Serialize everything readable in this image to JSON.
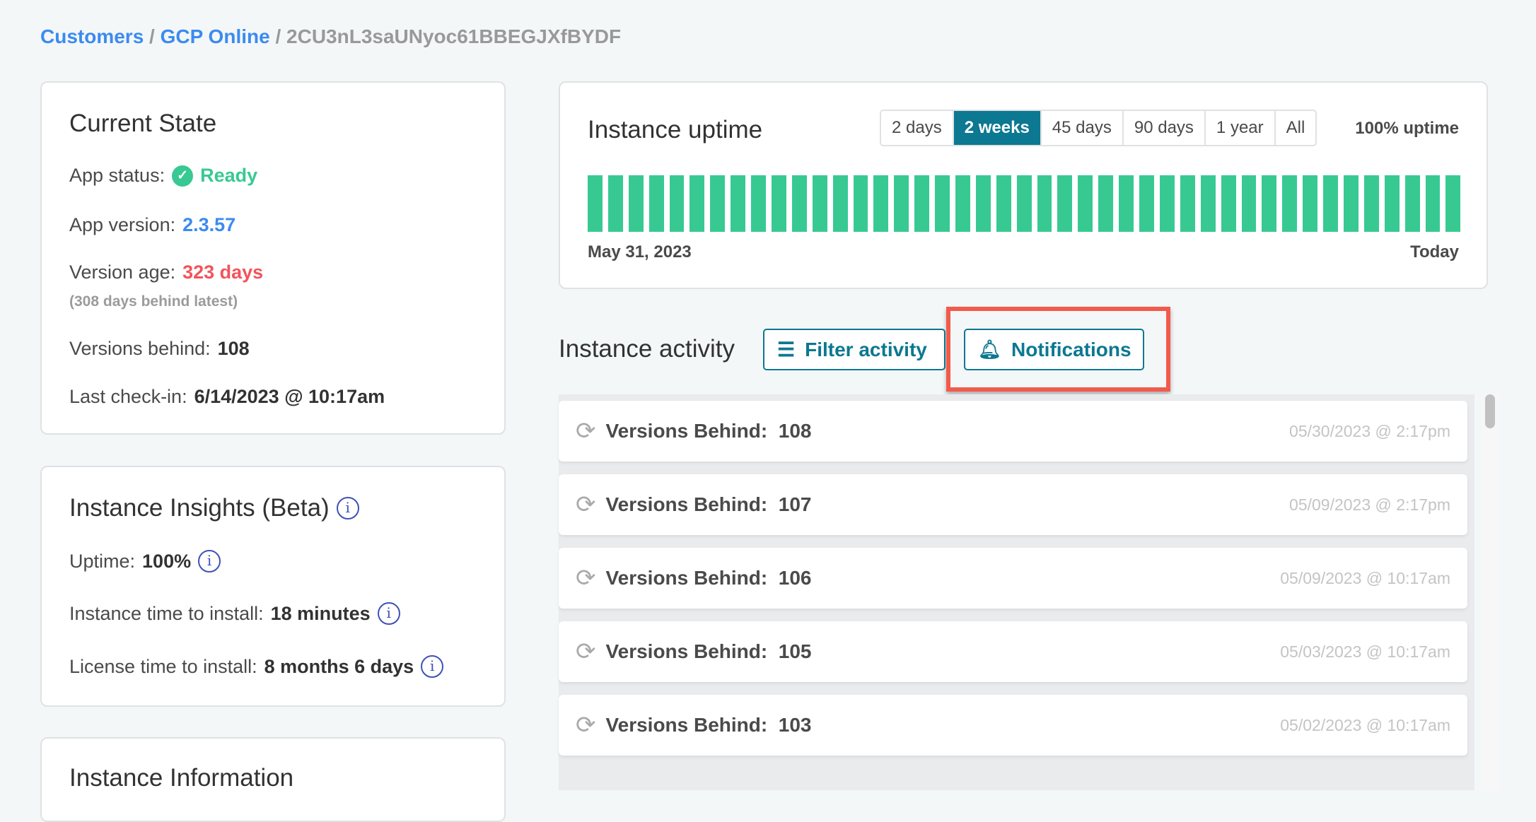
{
  "breadcrumb": {
    "customers": "Customers",
    "app": "GCP Online",
    "instance": "2CU3nL3saUNyoc61BBEGJXfBYDF",
    "sep": "/"
  },
  "current_state": {
    "title": "Current State",
    "app_status_label": "App status:",
    "app_status": "Ready",
    "app_version_label": "App version:",
    "app_version": "2.3.57",
    "version_age_label": "Version age:",
    "version_age": "323 days",
    "version_age_note": "(308 days behind latest)",
    "versions_behind_label": "Versions behind:",
    "versions_behind": "108",
    "last_checkin_label": "Last check-in:",
    "last_checkin": "6/14/2023 @ 10:17am"
  },
  "insights": {
    "title": "Instance Insights (Beta)",
    "uptime_label": "Uptime:",
    "uptime": "100%",
    "install_label": "Instance time to install:",
    "install": "18 minutes",
    "license_label": "License time to install:",
    "license": "8 months 6 days"
  },
  "instance_info": {
    "title": "Instance Information"
  },
  "uptime": {
    "title": "Instance uptime",
    "ranges": [
      "2 days",
      "2 weeks",
      "45 days",
      "90 days",
      "1 year",
      "All"
    ],
    "selected": "2 weeks",
    "summary": "100% uptime",
    "start_label": "May 31, 2023",
    "end_label": "Today",
    "bar_count": 43,
    "bar_color": "#38c993"
  },
  "activity": {
    "title": "Instance activity",
    "filter_label": "Filter activity",
    "notifications_label": "Notifications",
    "items": [
      {
        "label": "Versions Behind:",
        "value": "108",
        "time": "05/30/2023 @ 2:17pm"
      },
      {
        "label": "Versions Behind:",
        "value": "107",
        "time": "05/09/2023 @ 2:17pm"
      },
      {
        "label": "Versions Behind:",
        "value": "106",
        "time": "05/09/2023 @ 10:17am"
      },
      {
        "label": "Versions Behind:",
        "value": "105",
        "time": "05/03/2023 @ 10:17am"
      },
      {
        "label": "Versions Behind:",
        "value": "103",
        "time": "05/02/2023 @ 10:17am"
      }
    ]
  },
  "colors": {
    "accent": "#0c7891",
    "link": "#3b8bf0",
    "ready": "#38c993",
    "danger": "#f2545b",
    "highlight": "#f25a4b"
  }
}
